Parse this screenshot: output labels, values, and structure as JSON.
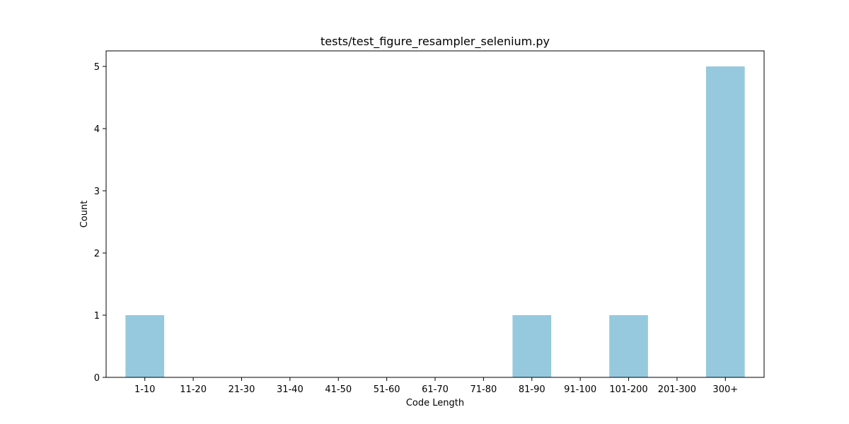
{
  "chart_data": {
    "type": "bar",
    "title": "tests/test_figure_resampler_selenium.py",
    "xlabel": "Code Length",
    "ylabel": "Count",
    "categories": [
      "1-10",
      "11-20",
      "21-30",
      "31-40",
      "41-50",
      "51-60",
      "61-70",
      "71-80",
      "81-90",
      "91-100",
      "101-200",
      "201-300",
      "300+"
    ],
    "values": [
      1,
      0,
      0,
      0,
      0,
      0,
      0,
      0,
      1,
      0,
      1,
      0,
      5
    ],
    "ylim": [
      0,
      5.25
    ],
    "yticks": [
      0,
      1,
      2,
      3,
      4,
      5
    ],
    "bar_color": "#96c9de",
    "grid": false,
    "legend": "none"
  }
}
